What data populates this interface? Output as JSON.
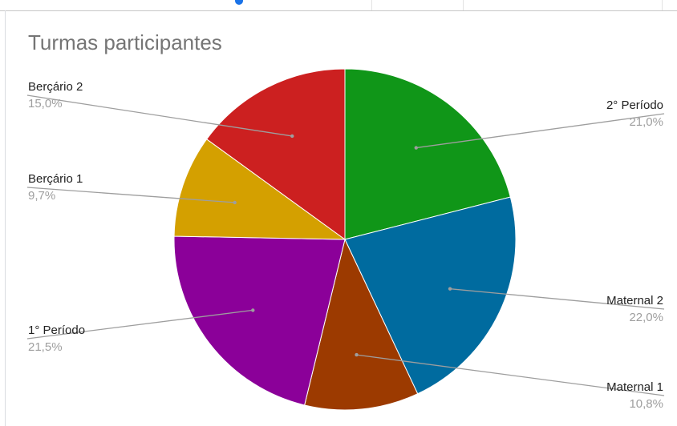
{
  "chart_data": {
    "type": "pie",
    "title": "Turmas participantes",
    "slices": [
      {
        "label": "2° Período",
        "value": 21.0,
        "percent_label": "21,0%",
        "color": "#109618"
      },
      {
        "label": "Maternal 2",
        "value": 22.0,
        "percent_label": "22,0%",
        "color": "#006b9f"
      },
      {
        "label": "Maternal 1",
        "value": 10.8,
        "percent_label": "10,8%",
        "color": "#9c3a00"
      },
      {
        "label": "1° Período",
        "value": 21.5,
        "percent_label": "21,5%",
        "color": "#8b0099"
      },
      {
        "label": "Berçário 1",
        "value": 9.7,
        "percent_label": "9,7%",
        "color": "#d4a000"
      },
      {
        "label": "Berçário 2",
        "value": 15.0,
        "percent_label": "15,0%",
        "color": "#cc2020"
      }
    ],
    "start_angle": "12 o'clock",
    "direction": "clockwise",
    "label_style": "outside labels with leader lines"
  }
}
